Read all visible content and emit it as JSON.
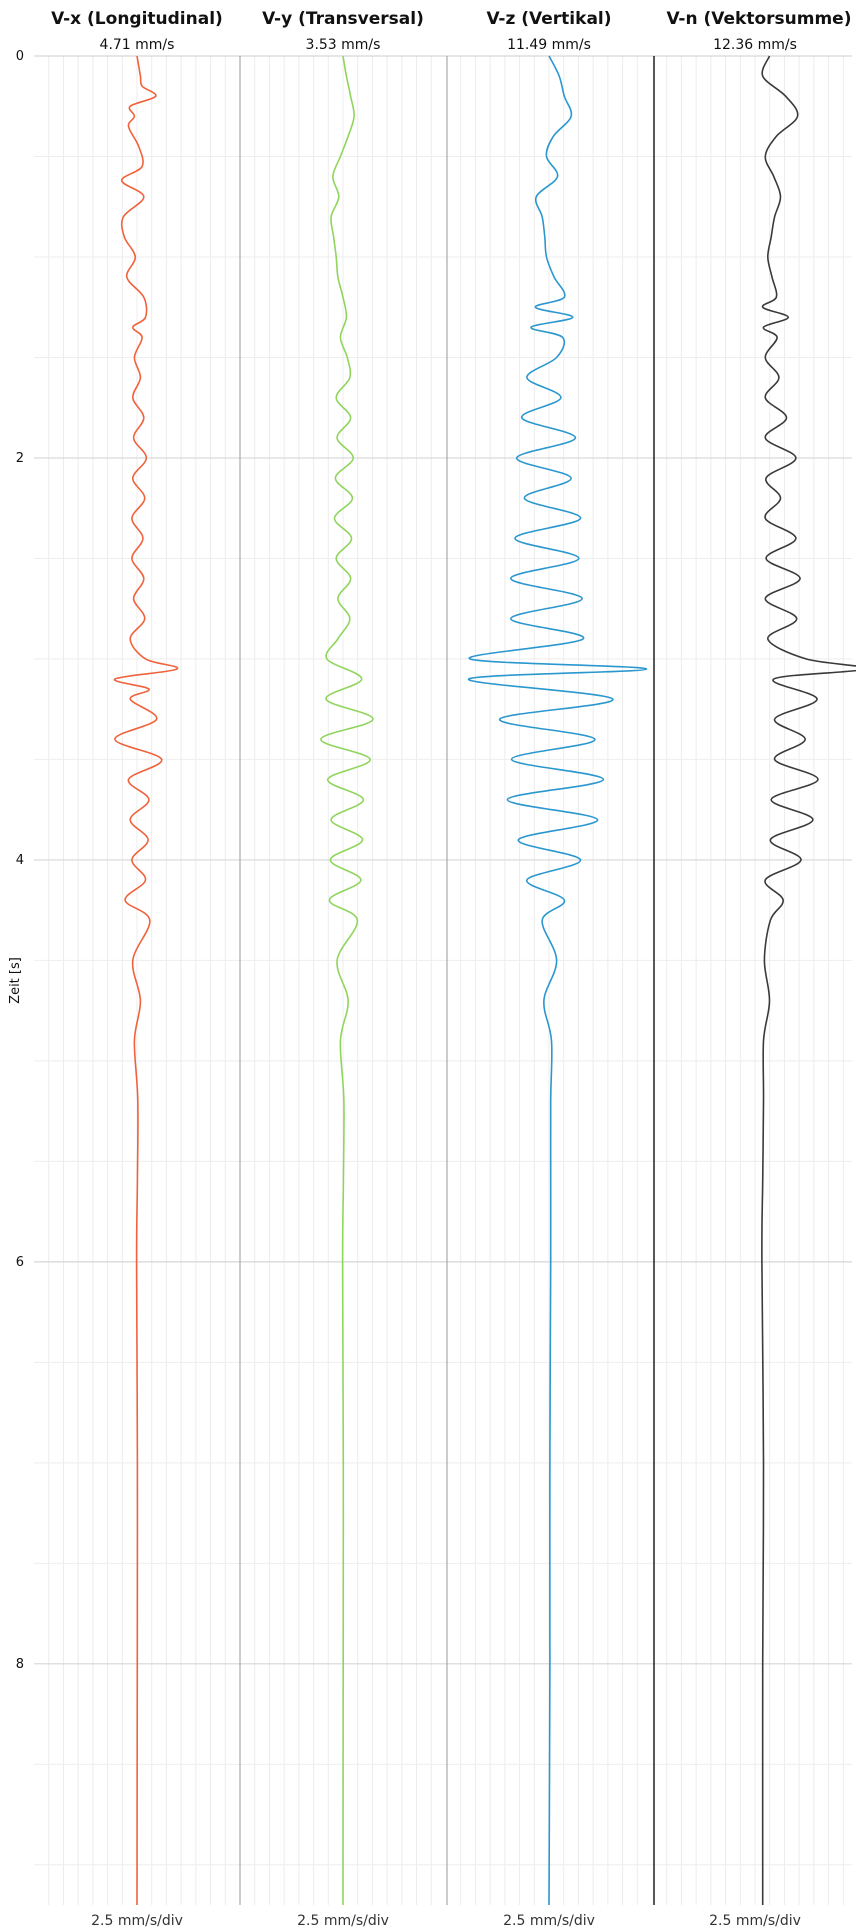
{
  "chart_data": {
    "type": "line",
    "ylabel": "Zeit [s]",
    "ylim": [
      0,
      9.2
    ],
    "yticks": [
      0,
      2,
      4,
      6,
      8
    ],
    "y_inverted": true,
    "grid": true,
    "panels": [
      {
        "title": "V-x (Longitudinal)",
        "peak_label": "4.71 mm/s",
        "scale_label": "2.5 mm/s/div",
        "color": "#f0623c",
        "series": {
          "t": [
            0,
            0.1,
            0.15,
            0.2,
            0.25,
            0.3,
            0.35,
            0.45,
            0.55,
            0.62,
            0.7,
            0.8,
            0.9,
            1.0,
            1.1,
            1.2,
            1.3,
            1.35,
            1.4,
            1.5,
            1.6,
            1.7,
            1.8,
            1.9,
            2.0,
            2.1,
            2.2,
            2.3,
            2.4,
            2.5,
            2.6,
            2.7,
            2.8,
            2.9,
            3.0,
            3.05,
            3.1,
            3.15,
            3.2,
            3.3,
            3.4,
            3.5,
            3.6,
            3.7,
            3.8,
            3.9,
            4.0,
            4.1,
            4.2,
            4.3,
            4.5,
            4.7,
            4.9,
            5.2,
            5.6,
            6.0,
            7.0,
            8.0,
            9.2
          ],
          "v": [
            0.0,
            0.4,
            0.6,
            2.2,
            -0.8,
            -0.3,
            -1.0,
            0.2,
            0.6,
            -1.8,
            0.8,
            -1.6,
            -1.5,
            -0.2,
            -1.2,
            0.8,
            1.0,
            -0.5,
            0.6,
            -0.3,
            0.4,
            -0.5,
            0.8,
            -0.4,
            1.1,
            -0.5,
            0.9,
            -0.6,
            0.7,
            -0.6,
            0.8,
            -0.4,
            0.9,
            -0.8,
            1.0,
            4.71,
            -2.6,
            1.4,
            -0.8,
            2.3,
            -2.6,
            2.9,
            -1.0,
            1.4,
            -0.8,
            1.3,
            -0.6,
            1.0,
            -1.4,
            1.5,
            -0.5,
            0.4,
            -0.3,
            0.1,
            0.05,
            -0.05,
            0.05,
            0.03,
            0.0
          ]
        }
      },
      {
        "title": "V-y (Transversal)",
        "peak_label": "3.53 mm/s",
        "scale_label": "2.5 mm/s/div",
        "color": "#8fd55c",
        "series": {
          "t": [
            0,
            0.1,
            0.2,
            0.3,
            0.4,
            0.5,
            0.6,
            0.7,
            0.8,
            0.9,
            1.0,
            1.1,
            1.2,
            1.3,
            1.4,
            1.5,
            1.6,
            1.7,
            1.8,
            1.9,
            2.0,
            2.1,
            2.2,
            2.3,
            2.4,
            2.5,
            2.6,
            2.7,
            2.8,
            2.9,
            3.0,
            3.1,
            3.2,
            3.3,
            3.4,
            3.5,
            3.6,
            3.7,
            3.8,
            3.9,
            4.0,
            4.1,
            4.2,
            4.3,
            4.5,
            4.7,
            4.9,
            5.2,
            5.6,
            6.0,
            7.0,
            8.0,
            9.2
          ],
          "v": [
            0.0,
            0.4,
            0.9,
            1.3,
            0.6,
            -0.3,
            -1.2,
            -0.5,
            -1.4,
            -1.1,
            -0.8,
            -0.6,
            0.0,
            0.4,
            -0.3,
            0.5,
            0.8,
            -0.8,
            0.9,
            -0.7,
            1.2,
            -0.9,
            1.1,
            -1.0,
            1.0,
            -0.8,
            0.9,
            -0.6,
            0.8,
            -0.6,
            -1.9,
            2.2,
            -2.0,
            3.53,
            -2.6,
            3.2,
            -1.8,
            2.4,
            -1.4,
            2.3,
            -1.5,
            2.1,
            -1.6,
            1.7,
            -0.7,
            0.6,
            -0.3,
            0.1,
            0.05,
            -0.05,
            0.04,
            0.02,
            0.0
          ]
        }
      },
      {
        "title": "V-z (Vertikal)",
        "peak_label": "11.49 mm/s",
        "scale_label": "2.5 mm/s/div",
        "color": "#2a97cf",
        "series": {
          "t": [
            0,
            0.1,
            0.2,
            0.3,
            0.4,
            0.5,
            0.6,
            0.7,
            0.8,
            0.9,
            1.0,
            1.1,
            1.2,
            1.25,
            1.3,
            1.35,
            1.4,
            1.5,
            1.6,
            1.7,
            1.8,
            1.9,
            2.0,
            2.1,
            2.2,
            2.3,
            2.4,
            2.5,
            2.6,
            2.7,
            2.8,
            2.9,
            3.0,
            3.05,
            3.1,
            3.2,
            3.3,
            3.4,
            3.5,
            3.6,
            3.7,
            3.8,
            3.9,
            4.0,
            4.1,
            4.2,
            4.3,
            4.5,
            4.7,
            4.9,
            5.2,
            5.6,
            6.0,
            7.0,
            8.0,
            9.2
          ],
          "v": [
            0.0,
            1.2,
            1.8,
            2.6,
            0.5,
            -0.3,
            1.0,
            -1.5,
            -0.8,
            -0.5,
            -0.3,
            0.6,
            1.8,
            -1.6,
            2.8,
            -2.1,
            1.6,
            0.9,
            -2.6,
            1.4,
            -3.2,
            3.1,
            -3.8,
            2.6,
            -2.9,
            3.7,
            -4.0,
            3.5,
            -4.5,
            3.9,
            -4.5,
            4.02,
            -9.3,
            11.49,
            -9.45,
            7.5,
            -5.8,
            5.4,
            -4.4,
            6.4,
            -4.9,
            5.7,
            -3.6,
            3.7,
            -2.6,
            1.8,
            -0.8,
            0.9,
            -0.6,
            0.3,
            0.2,
            0.2,
            0.2,
            0.1,
            0.1,
            0.0
          ]
        }
      },
      {
        "title": "V-n (Vektorsumme)",
        "peak_label": "12.36 mm/s",
        "scale_label": "2.5 mm/s/div",
        "color": "#3a3a3a",
        "series": {
          "t": [
            0,
            0.1,
            0.2,
            0.3,
            0.4,
            0.5,
            0.6,
            0.7,
            0.8,
            0.9,
            1.0,
            1.1,
            1.2,
            1.25,
            1.3,
            1.35,
            1.4,
            1.5,
            1.6,
            1.7,
            1.8,
            1.9,
            2.0,
            2.1,
            2.2,
            2.3,
            2.4,
            2.5,
            2.6,
            2.7,
            2.8,
            2.9,
            3.0,
            3.05,
            3.1,
            3.2,
            3.3,
            3.4,
            3.5,
            3.6,
            3.7,
            3.8,
            3.9,
            4.0,
            4.1,
            4.2,
            4.3,
            4.5,
            4.7,
            4.9,
            5.2,
            5.6,
            6.0,
            7.0,
            8.0,
            9.2
          ],
          "v": [
            1.0,
            0.2,
            2.9,
            4.3,
            1.8,
            0.5,
            1.5,
            2.3,
            1.6,
            1.2,
            0.8,
            1.3,
            1.8,
            0.2,
            3.2,
            0.3,
            1.9,
            0.5,
            2.1,
            0.5,
            3.0,
            0.5,
            4.1,
            0.6,
            2.3,
            0.5,
            4.1,
            0.6,
            4.6,
            0.5,
            4.2,
            0.8,
            5.3,
            12.36,
            1.5,
            6.6,
            1.6,
            5.2,
            1.6,
            6.7,
            1.2,
            6.1,
            1.1,
            4.7,
            0.5,
            2.6,
            1.1,
            0.4,
            1.0,
            0.3,
            0.3,
            0.2,
            0.1,
            0.3,
            0.2,
            0.2
          ]
        }
      }
    ]
  }
}
